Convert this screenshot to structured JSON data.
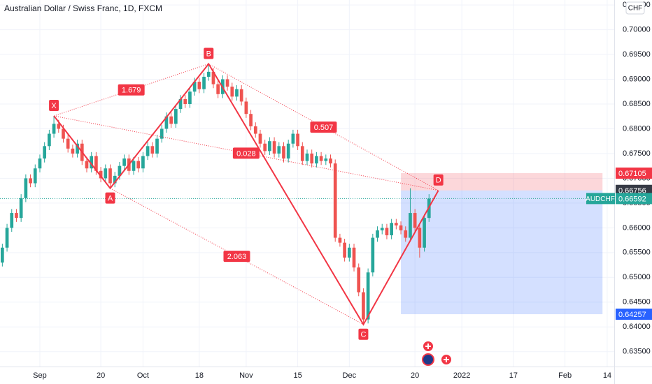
{
  "chart_data": {
    "type": "candlestick",
    "title": "Australian Dollar / Swiss Franc, 1D, FXCM",
    "currency": "CHF",
    "up_color": "#26a69a",
    "down_color": "#ef5350",
    "candles": [
      [
        0.653,
        0.6568,
        0.6522,
        0.656
      ],
      [
        0.656,
        0.6608,
        0.6552,
        0.66
      ],
      [
        0.66,
        0.6638,
        0.6592,
        0.663
      ],
      [
        0.663,
        0.6638,
        0.6612,
        0.662
      ],
      [
        0.662,
        0.6668,
        0.6612,
        0.666
      ],
      [
        0.666,
        0.6708,
        0.6652,
        0.67
      ],
      [
        0.67,
        0.6708,
        0.6682,
        0.669
      ],
      [
        0.669,
        0.6728,
        0.6682,
        0.672
      ],
      [
        0.672,
        0.6748,
        0.6712,
        0.674
      ],
      [
        0.674,
        0.6773,
        0.6732,
        0.6765
      ],
      [
        0.6765,
        0.6798,
        0.6757,
        0.679
      ],
      [
        0.679,
        0.6826,
        0.6782,
        0.681
      ],
      [
        0.681,
        0.6818,
        0.6792,
        0.68
      ],
      [
        0.68,
        0.6808,
        0.6772,
        0.678
      ],
      [
        0.678,
        0.6788,
        0.6752,
        0.676
      ],
      [
        0.676,
        0.6768,
        0.6742,
        0.675
      ],
      [
        0.675,
        0.6778,
        0.6742,
        0.677
      ],
      [
        0.677,
        0.6778,
        0.6727,
        0.6735
      ],
      [
        0.6735,
        0.6743,
        0.6712,
        0.672
      ],
      [
        0.672,
        0.6753,
        0.6712,
        0.6745
      ],
      [
        0.6745,
        0.6753,
        0.6707,
        0.6715
      ],
      [
        0.6715,
        0.6723,
        0.6692,
        0.67
      ],
      [
        0.67,
        0.6728,
        0.6692,
        0.672
      ],
      [
        0.672,
        0.6728,
        0.668,
        0.669
      ],
      [
        0.669,
        0.6713,
        0.6682,
        0.6705
      ],
      [
        0.6705,
        0.6733,
        0.6697,
        0.6725
      ],
      [
        0.6725,
        0.6748,
        0.6717,
        0.674
      ],
      [
        0.674,
        0.6748,
        0.6707,
        0.6715
      ],
      [
        0.6715,
        0.6743,
        0.6707,
        0.6735
      ],
      [
        0.6735,
        0.6743,
        0.6712,
        0.672
      ],
      [
        0.672,
        0.6753,
        0.6712,
        0.6745
      ],
      [
        0.6745,
        0.6773,
        0.6737,
        0.6765
      ],
      [
        0.6765,
        0.6773,
        0.6742,
        0.675
      ],
      [
        0.675,
        0.6788,
        0.6742,
        0.678
      ],
      [
        0.678,
        0.6808,
        0.6772,
        0.68
      ],
      [
        0.68,
        0.6833,
        0.6792,
        0.6825
      ],
      [
        0.6825,
        0.6833,
        0.6802,
        0.681
      ],
      [
        0.681,
        0.6848,
        0.6802,
        0.684
      ],
      [
        0.684,
        0.6868,
        0.6832,
        0.686
      ],
      [
        0.686,
        0.6868,
        0.6842,
        0.685
      ],
      [
        0.685,
        0.6883,
        0.6842,
        0.6875
      ],
      [
        0.6875,
        0.6903,
        0.6867,
        0.6895
      ],
      [
        0.6895,
        0.6903,
        0.6872,
        0.688
      ],
      [
        0.688,
        0.6913,
        0.6872,
        0.6905
      ],
      [
        0.6905,
        0.6931,
        0.6897,
        0.6915
      ],
      [
        0.6915,
        0.6923,
        0.6882,
        0.689
      ],
      [
        0.689,
        0.6898,
        0.6862,
        0.687
      ],
      [
        0.687,
        0.6908,
        0.6862,
        0.69
      ],
      [
        0.69,
        0.6908,
        0.6877,
        0.6885
      ],
      [
        0.6885,
        0.6893,
        0.6857,
        0.6865
      ],
      [
        0.6865,
        0.6888,
        0.6857,
        0.688
      ],
      [
        0.688,
        0.6888,
        0.6847,
        0.6855
      ],
      [
        0.6855,
        0.6863,
        0.6822,
        0.683
      ],
      [
        0.683,
        0.6838,
        0.6797,
        0.6805
      ],
      [
        0.6805,
        0.6813,
        0.6782,
        0.679
      ],
      [
        0.679,
        0.6798,
        0.6762,
        0.677
      ],
      [
        0.677,
        0.6778,
        0.6747,
        0.6755
      ],
      [
        0.6755,
        0.6783,
        0.6747,
        0.6775
      ],
      [
        0.6775,
        0.6783,
        0.6742,
        0.675
      ],
      [
        0.675,
        0.6773,
        0.6742,
        0.6765
      ],
      [
        0.6765,
        0.6773,
        0.6732,
        0.674
      ],
      [
        0.674,
        0.6778,
        0.6732,
        0.677
      ],
      [
        0.677,
        0.6798,
        0.6762,
        0.679
      ],
      [
        0.679,
        0.6798,
        0.6757,
        0.6765
      ],
      [
        0.6765,
        0.6773,
        0.6727,
        0.6735
      ],
      [
        0.6735,
        0.6758,
        0.6727,
        0.675
      ],
      [
        0.675,
        0.6758,
        0.6722,
        0.673
      ],
      [
        0.673,
        0.6753,
        0.6722,
        0.6745
      ],
      [
        0.6745,
        0.6753,
        0.6727,
        0.6735
      ],
      [
        0.6735,
        0.6748,
        0.6727,
        0.674
      ],
      [
        0.674,
        0.6748,
        0.6722,
        0.673
      ],
      [
        0.673,
        0.6738,
        0.6572,
        0.658
      ],
      [
        0.658,
        0.6588,
        0.6562,
        0.657
      ],
      [
        0.657,
        0.6578,
        0.6532,
        0.654
      ],
      [
        0.654,
        0.6568,
        0.6532,
        0.656
      ],
      [
        0.656,
        0.6568,
        0.6512,
        0.652
      ],
      [
        0.652,
        0.6528,
        0.6462,
        0.647
      ],
      [
        0.647,
        0.6478,
        0.6405,
        0.6415
      ],
      [
        0.6415,
        0.6518,
        0.6407,
        0.651
      ],
      [
        0.651,
        0.6588,
        0.6502,
        0.658
      ],
      [
        0.658,
        0.6603,
        0.6572,
        0.6595
      ],
      [
        0.6595,
        0.6608,
        0.6587,
        0.66
      ],
      [
        0.66,
        0.6608,
        0.6577,
        0.6585
      ],
      [
        0.6585,
        0.6618,
        0.6577,
        0.661
      ],
      [
        0.661,
        0.6618,
        0.6597,
        0.6605
      ],
      [
        0.6605,
        0.6613,
        0.6587,
        0.6595
      ],
      [
        0.6595,
        0.6603,
        0.6572,
        0.658
      ],
      [
        0.658,
        0.668,
        0.6572,
        0.663
      ],
      [
        0.663,
        0.6638,
        0.6592,
        0.66
      ],
      [
        0.66,
        0.6608,
        0.654,
        0.656
      ],
      [
        0.656,
        0.6628,
        0.6552,
        0.662
      ],
      [
        0.662,
        0.6668,
        0.6612,
        0.6659
      ]
    ],
    "xlim": [
      -0.5,
      130.5
    ],
    "xticks": [
      {
        "value": 8,
        "label": "Sep"
      },
      {
        "value": 21,
        "label": "20"
      },
      {
        "value": 30,
        "label": "Oct"
      },
      {
        "value": 42,
        "label": "18"
      },
      {
        "value": 52,
        "label": "Nov"
      },
      {
        "value": 63,
        "label": "15"
      },
      {
        "value": 74,
        "label": "Dec"
      },
      {
        "value": 88,
        "label": "20"
      },
      {
        "value": 98,
        "label": "2022"
      },
      {
        "value": 109,
        "label": "17"
      },
      {
        "value": 120,
        "label": "Feb"
      },
      {
        "value": 129,
        "label": "14"
      }
    ],
    "ylim": [
      0.632,
      0.706
    ],
    "yticks": [
      {
        "value": 0.635,
        "label": "0.63500"
      },
      {
        "value": 0.64,
        "label": "0.64000"
      },
      {
        "value": 0.645,
        "label": "0.64500"
      },
      {
        "value": 0.65,
        "label": "0.65000"
      },
      {
        "value": 0.655,
        "label": "0.65500"
      },
      {
        "value": 0.66,
        "label": "0.66000"
      },
      {
        "value": 0.665,
        "label": "0.66500"
      },
      {
        "value": 0.67,
        "label": "0.67000"
      },
      {
        "value": 0.675,
        "label": "0.67500"
      },
      {
        "value": 0.68,
        "label": "0.68000"
      },
      {
        "value": 0.685,
        "label": "0.68500"
      },
      {
        "value": 0.69,
        "label": "0.69000"
      },
      {
        "value": 0.695,
        "label": "0.69500"
      },
      {
        "value": 0.7,
        "label": "0.70000"
      },
      {
        "value": 0.705,
        "label": "0.70500"
      }
    ],
    "pattern": {
      "color": "#f23645",
      "points": [
        {
          "label": "X",
          "x": 11,
          "y": 0.6826
        },
        {
          "label": "A",
          "x": 23,
          "y": 0.668
        },
        {
          "label": "B",
          "x": 44,
          "y": 0.6931
        },
        {
          "label": "C",
          "x": 77,
          "y": 0.6405
        },
        {
          "label": "D",
          "x": 93,
          "y": 0.66756
        }
      ],
      "ratios": [
        {
          "value": 1.679,
          "between": [
            "X",
            "B"
          ]
        },
        {
          "value": 0.028,
          "between": [
            "X",
            "D"
          ]
        },
        {
          "value": 0.507,
          "between": [
            "B",
            "D"
          ]
        },
        {
          "value": 2.063,
          "between": [
            "A",
            "C"
          ]
        }
      ]
    },
    "position": {
      "x": [
        85,
        128
      ],
      "stop": 0.67105,
      "entry": 0.66756,
      "target": 0.64257
    },
    "last_price": {
      "symbol": "AUDCHF",
      "value": 0.66592
    }
  }
}
